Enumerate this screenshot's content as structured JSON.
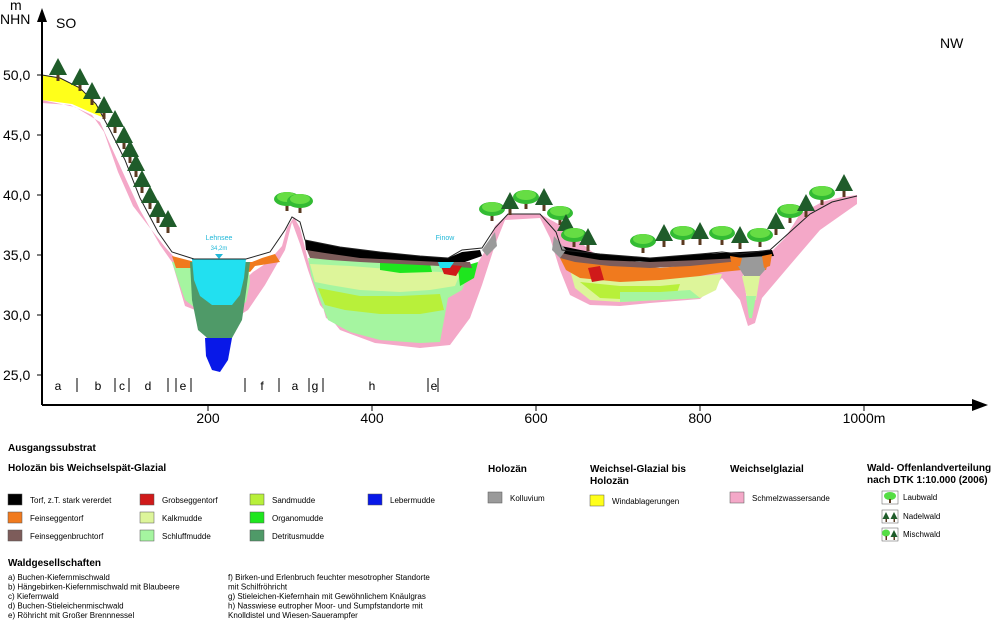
{
  "axes": {
    "y_unit": "m",
    "y_unit2": "NHN",
    "y_ticks": [
      "50,0",
      "45,0",
      "40,0",
      "35,0",
      "30,0",
      "25,0"
    ],
    "x_ticks": [
      "200",
      "400",
      "600",
      "800",
      "1000m"
    ],
    "left_label": "SO",
    "right_label": "NW"
  },
  "annotations": {
    "lake1_name": "Lehnsee",
    "lake1_level": "34,2m",
    "lake2_name": "Finow"
  },
  "segments": [
    "a",
    "b",
    "c",
    "d",
    "e",
    "f",
    "a",
    "g",
    "h",
    "e"
  ],
  "legend": {
    "title_substrate": "Ausgangssubstrat",
    "group1_title": "Holozän bis Weichselspät-Glazial",
    "group1_items": [
      {
        "label": "Torf, z.T. stark vererdet",
        "color": "#000000"
      },
      {
        "label": "Feinseggentorf",
        "color": "#f07a1e"
      },
      {
        "label": "Feinseggenbruchtorf",
        "color": "#7d5c5a"
      },
      {
        "label": "Grobseggentorf",
        "color": "#d01a1a"
      },
      {
        "label": "Kalkmudde",
        "color": "#ddf59a"
      },
      {
        "label": "Schluffmudde",
        "color": "#a5f5a0"
      },
      {
        "label": "Sandmudde",
        "color": "#b8f03a"
      },
      {
        "label": "Organomudde",
        "color": "#1ee61e"
      },
      {
        "label": "Detritusmudde",
        "color": "#4f9a68"
      },
      {
        "label": "Lebermudde",
        "color": "#0818e8"
      }
    ],
    "group2_title": "Holozän",
    "group2_items": [
      {
        "label": "Kolluvium",
        "color": "#9a9a9a"
      }
    ],
    "group3_title_line1": "Weichsel-Glazial bis",
    "group3_title_line2": "Holozän",
    "group3_items": [
      {
        "label": "Windablagerungen",
        "color": "#ffff1a"
      }
    ],
    "group4_title": "Weichselglazial",
    "group4_items": [
      {
        "label": "Schmelzwassersande",
        "color": "#f4a8c8"
      }
    ],
    "forest_title_line1": "Wald- Offenlandverteilung",
    "forest_title_line2": "nach DTK 1:10.000 (2006)",
    "forest_items": [
      {
        "label": "Laubwald",
        "icon": "deciduous-tree-icon"
      },
      {
        "label": "Nadelwald",
        "icon": "conifer-tree-icon"
      },
      {
        "label": "Mischwald",
        "icon": "mixed-forest-icon"
      }
    ]
  },
  "communities": {
    "title": "Waldgesellschaften",
    "items_left": [
      "a) Buchen-Kiefernmischwald",
      "b) Hängebirken-Kiefernmischwald mit Blaubeere",
      "c) Kiefernwald",
      "d) Buchen-Stieleichenmischwald",
      "e) Röhricht mit Großer Brennnessel"
    ],
    "items_right": [
      "f)  Birken-und Erlenbruch feuchter mesotropher Standorte",
      "     mit Schilfröhricht",
      "g) Stieleichen-Kiefernhain mit Gewöhnlichem Knäulgras",
      "h) Nasswiese eutropher Moor- und Sumpfstandorte mit",
      "     Knolldistel und Wiesen-Sauerampfer"
    ]
  },
  "colors": {
    "tree_green": "#33aa33",
    "tree_light": "#55dd44",
    "conifer": "#1f5c2a",
    "water": "#22e0f0",
    "trunk": "#5a3a20"
  }
}
